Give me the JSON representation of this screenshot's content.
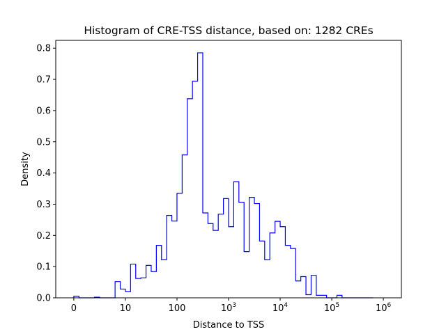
{
  "chart_data": {
    "type": "histogram",
    "title": "Histogram of CRE-TSS distance, based on: 1282 CREs",
    "xlabel": "Distance to TSS",
    "ylabel": "Density",
    "x_scale": "symlog",
    "xlim": [
      -0.35,
      6.35
    ],
    "ylim": [
      0,
      0.825
    ],
    "x_ticks": [
      {
        "label": "0",
        "value": 0
      },
      {
        "label": "10",
        "value": 10
      },
      {
        "label": "100",
        "value": 100
      },
      {
        "label": "10^3",
        "base": "10",
        "exp": "3",
        "value": 1000
      },
      {
        "label": "10^4",
        "base": "10",
        "exp": "4",
        "value": 10000
      },
      {
        "label": "10^5",
        "base": "10",
        "exp": "5",
        "value": 100000
      },
      {
        "label": "10^6",
        "base": "10",
        "exp": "6",
        "value": 1000000
      }
    ],
    "y_ticks": [
      {
        "label": "0.0",
        "value": 0.0
      },
      {
        "label": "0.1",
        "value": 0.1
      },
      {
        "label": "0.2",
        "value": 0.2
      },
      {
        "label": "0.3",
        "value": 0.3
      },
      {
        "label": "0.4",
        "value": 0.4
      },
      {
        "label": "0.5",
        "value": 0.5
      },
      {
        "label": "0.6",
        "value": 0.6
      },
      {
        "label": "0.7",
        "value": 0.7
      },
      {
        "label": "0.8",
        "value": 0.8
      }
    ],
    "bin_edges_log10": [
      0.0,
      0.1,
      0.2,
      0.3,
      0.4,
      0.5,
      0.6,
      0.7,
      0.8,
      0.9,
      1.0,
      1.1,
      1.2,
      1.3,
      1.4,
      1.5,
      1.6,
      1.7,
      1.8,
      1.9,
      2.0,
      2.1,
      2.2,
      2.3,
      2.4,
      2.5,
      2.6,
      2.7,
      2.8,
      2.9,
      3.0,
      3.1,
      3.2,
      3.3,
      3.4,
      3.5,
      3.6,
      3.7,
      3.8,
      3.9,
      4.0,
      4.1,
      4.2,
      4.3,
      4.4,
      4.5,
      4.6,
      4.7,
      4.8,
      4.9,
      5.0,
      5.1,
      5.2,
      5.3,
      5.4,
      5.5,
      5.6,
      5.7,
      5.8
    ],
    "densities": [
      0.005,
      0.0,
      0.0,
      0.0,
      0.002,
      0.0,
      0.0,
      0.0,
      0.052,
      0.028,
      0.02,
      0.108,
      0.062,
      0.064,
      0.104,
      0.084,
      0.168,
      0.122,
      0.264,
      0.246,
      0.335,
      0.458,
      0.638,
      0.694,
      0.785,
      0.272,
      0.238,
      0.216,
      0.268,
      0.318,
      0.228,
      0.372,
      0.306,
      0.148,
      0.322,
      0.302,
      0.182,
      0.122,
      0.208,
      0.245,
      0.228,
      0.168,
      0.158,
      0.054,
      0.068,
      0.01,
      0.072,
      0.008,
      0.008,
      0.0,
      0.0,
      0.008,
      0.0,
      0.0,
      0.0,
      0.0,
      0.0,
      0.0
    ],
    "line_color": "#0000ff",
    "grid": false,
    "legend": "none"
  }
}
